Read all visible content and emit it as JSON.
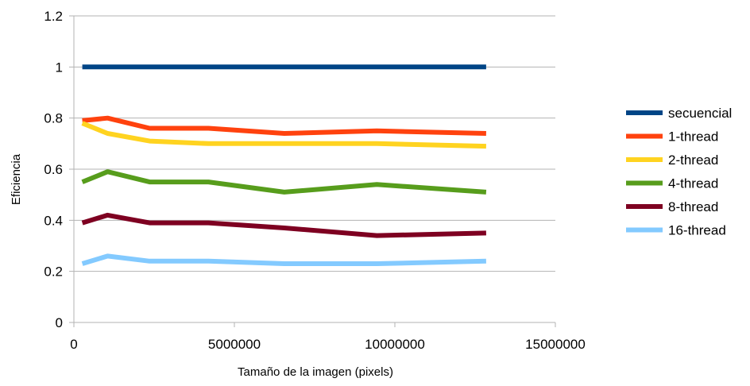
{
  "chart_data": {
    "type": "line",
    "title": "",
    "xlabel": "Tamaño de la imagen (pixels)",
    "ylabel": "Eficiencia",
    "xlim": [
      0,
      15000000
    ],
    "ylim": [
      0,
      1.2
    ],
    "x_ticks": [
      0,
      5000000,
      10000000,
      15000000
    ],
    "x_tick_labels": [
      "0",
      "5000000",
      "10000000",
      "15000000"
    ],
    "y_ticks": [
      0,
      0.2,
      0.4,
      0.6,
      0.8,
      1,
      1.2
    ],
    "y_tick_labels": [
      "0",
      "0.2",
      "0.4",
      "0.6",
      "0.8",
      "1",
      "1.2"
    ],
    "grid": "horizontal",
    "legend_position": "right",
    "x": [
      262144,
      1048576,
      2359296,
      4194304,
      6553600,
      9437184,
      12845056
    ],
    "series": [
      {
        "name": "secuencial",
        "color": "#004586",
        "values": [
          1,
          1,
          1,
          1,
          1,
          1,
          1
        ]
      },
      {
        "name": "1-thread",
        "color": "#ff420e",
        "values": [
          0.79,
          0.8,
          0.76,
          0.76,
          0.74,
          0.75,
          0.74
        ]
      },
      {
        "name": "2-thread",
        "color": "#ffd320",
        "values": [
          0.78,
          0.74,
          0.71,
          0.7,
          0.7,
          0.7,
          0.69
        ]
      },
      {
        "name": "4-thread",
        "color": "#579d1c",
        "values": [
          0.55,
          0.59,
          0.55,
          0.55,
          0.51,
          0.54,
          0.51
        ]
      },
      {
        "name": "8-thread",
        "color": "#7e0021",
        "values": [
          0.39,
          0.42,
          0.39,
          0.39,
          0.37,
          0.34,
          0.35
        ]
      },
      {
        "name": "16-thread",
        "color": "#83caff",
        "values": [
          0.23,
          0.26,
          0.24,
          0.24,
          0.23,
          0.23,
          0.24
        ]
      }
    ]
  }
}
